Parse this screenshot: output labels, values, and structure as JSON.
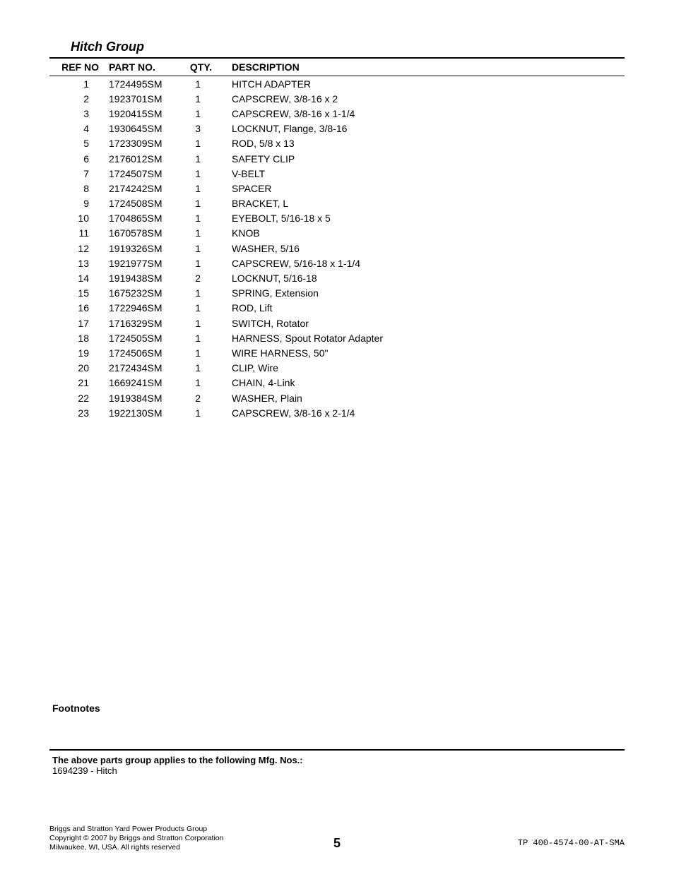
{
  "section_title": "Hitch Group",
  "headers": {
    "ref": "REF NO",
    "part": "PART NO.",
    "qty": "QTY.",
    "desc": "DESCRIPTION"
  },
  "rows": [
    {
      "ref": "1",
      "part": "1724495SM",
      "qty": "1",
      "desc": "HITCH ADAPTER"
    },
    {
      "ref": "2",
      "part": "1923701SM",
      "qty": "1",
      "desc": "CAPSCREW, 3/8-16 x 2"
    },
    {
      "ref": "3",
      "part": "1920415SM",
      "qty": "1",
      "desc": "CAPSCREW, 3/8-16 x 1-1/4"
    },
    {
      "ref": "4",
      "part": "1930645SM",
      "qty": "3",
      "desc": "LOCKNUT, Flange, 3/8-16"
    },
    {
      "ref": "5",
      "part": "1723309SM",
      "qty": "1",
      "desc": "ROD, 5/8 x 13"
    },
    {
      "ref": "6",
      "part": "2176012SM",
      "qty": "1",
      "desc": "SAFETY CLIP"
    },
    {
      "ref": "7",
      "part": "1724507SM",
      "qty": "1",
      "desc": "V-BELT"
    },
    {
      "ref": "8",
      "part": "2174242SM",
      "qty": "1",
      "desc": "SPACER"
    },
    {
      "ref": "9",
      "part": "1724508SM",
      "qty": "1",
      "desc": "BRACKET, L"
    },
    {
      "ref": "10",
      "part": "1704865SM",
      "qty": "1",
      "desc": "EYEBOLT, 5/16-18 x 5"
    },
    {
      "ref": "11",
      "part": "1670578SM",
      "qty": "1",
      "desc": "KNOB"
    },
    {
      "ref": "12",
      "part": "1919326SM",
      "qty": "1",
      "desc": "WASHER, 5/16"
    },
    {
      "ref": "13",
      "part": "1921977SM",
      "qty": "1",
      "desc": "CAPSCREW, 5/16-18 x 1-1/4"
    },
    {
      "ref": "14",
      "part": "1919438SM",
      "qty": "2",
      "desc": "LOCKNUT, 5/16-18"
    },
    {
      "ref": "15",
      "part": "1675232SM",
      "qty": "1",
      "desc": "SPRING, Extension"
    },
    {
      "ref": "16",
      "part": "1722946SM",
      "qty": "1",
      "desc": "ROD, Lift"
    },
    {
      "ref": "17",
      "part": "1716329SM",
      "qty": "1",
      "desc": "SWITCH, Rotator"
    },
    {
      "ref": "18",
      "part": "1724505SM",
      "qty": "1",
      "desc": "HARNESS, Spout Rotator Adapter"
    },
    {
      "ref": "19",
      "part": "1724506SM",
      "qty": "1",
      "desc": "WIRE HARNESS, 50\""
    },
    {
      "ref": "20",
      "part": "2172434SM",
      "qty": "1",
      "desc": "CLIP, Wire"
    },
    {
      "ref": "21",
      "part": "1669241SM",
      "qty": "1",
      "desc": "CHAIN, 4-Link"
    },
    {
      "ref": "22",
      "part": "1919384SM",
      "qty": "2",
      "desc": "WASHER, Plain"
    },
    {
      "ref": "23",
      "part": "1922130SM",
      "qty": "1",
      "desc": "CAPSCREW, 3/8-16 x 2-1/4"
    }
  ],
  "footnotes_label": "Footnotes",
  "applies_title": "The above parts group applies to the following Mfg. Nos.:",
  "applies_item": "1694239 - Hitch",
  "footer": {
    "line1": "Briggs and Stratton Yard Power Products Group",
    "line2": "Copyright ©  2007 by Briggs and Stratton Corporation",
    "line3": "Milwaukee, WI, USA. All rights reserved",
    "page_no": "5",
    "doc_id": "TP 400-4574-00-AT-SMA"
  }
}
